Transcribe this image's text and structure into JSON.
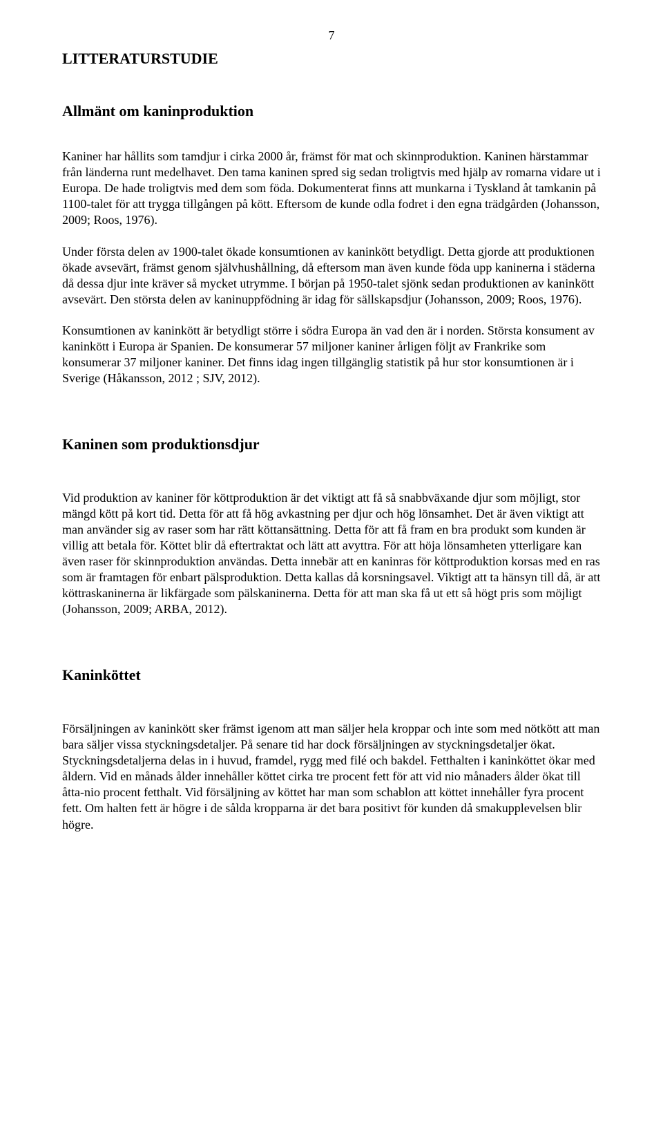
{
  "page_number": "7",
  "title": "LITTERATURSTUDIE",
  "sections": [
    {
      "heading": "Allmänt om kaninproduktion",
      "paragraphs": [
        "Kaniner har hållits som tamdjur i cirka 2000 år, främst för mat och skinnproduktion. Kaninen härstammar från länderna runt medelhavet. Den tama kaninen spred sig sedan troligtvis med hjälp av romarna vidare ut i Europa. De hade troligtvis med dem som föda. Dokumenterat finns att munkarna i Tyskland åt tamkanin på 1100-talet för att trygga tillgången på kött. Eftersom de kunde odla fodret i den egna trädgården (Johansson, 2009; Roos, 1976).",
        "Under första delen av 1900-talet ökade konsumtionen av kaninkött betydligt. Detta gjorde att produktionen ökade avsevärt, främst genom självhushållning, då eftersom man även kunde föda upp kaninerna i städerna då dessa djur inte kräver så mycket utrymme. I början på 1950-talet sjönk sedan produktionen av kaninkött avsevärt. Den största delen av kaninuppfödning är idag för sällskapsdjur (Johansson, 2009; Roos, 1976).",
        "Konsumtionen av kaninkött är betydligt större i södra Europa än vad den är i norden. Största konsument av kaninkött i Europa är Spanien. De konsumerar 57 miljoner kaniner årligen följt av Frankrike som konsumerar 37 miljoner kaniner. Det finns idag ingen tillgänglig statistik på hur stor konsumtionen är i Sverige (Håkansson, 2012 ; SJV, 2012)."
      ]
    },
    {
      "heading": "Kaninen som produktionsdjur",
      "paragraphs": [
        "Vid produktion av kaniner för köttproduktion är det viktigt att få så snabbväxande djur som möjligt, stor mängd kött på kort tid. Detta för att få hög avkastning per djur och hög lönsamhet. Det är även viktigt att man använder sig av raser som har rätt köttansättning. Detta för att få fram en bra produkt som kunden är villig att betala för. Köttet blir då eftertraktat och lätt att avyttra. För att höja lönsamheten ytterligare kan även raser för skinnproduktion användas. Detta innebär att en kaninras för köttproduktion korsas med en ras som är framtagen för enbart pälsproduktion. Detta kallas då korsningsavel. Viktigt att ta hänsyn till då, är att köttraskaninerna är likfärgade som pälskaninerna. Detta för att man ska få ut ett så högt pris som möjligt (Johansson, 2009; ARBA, 2012)."
      ]
    },
    {
      "heading": "Kaninköttet",
      "paragraphs": [
        "Försäljningen av kaninkött sker främst igenom att man säljer hela kroppar och inte som med nötkött att man bara säljer vissa styckningsdetaljer. På senare tid har dock försäljningen av styckningsdetaljer ökat. Styckningsdetaljerna delas in i huvud, framdel, rygg med filé och bakdel. Fetthalten i kaninköttet ökar med åldern. Vid en månads ålder innehåller köttet cirka tre procent fett för att vid nio månaders ålder ökat till åtta-nio procent fetthalt. Vid försäljning av köttet har man som schablon att köttet innehåller fyra procent fett. Om halten fett är högre i de sålda kropparna är det bara positivt för kunden då smakupplevelsen blir högre."
      ]
    }
  ]
}
